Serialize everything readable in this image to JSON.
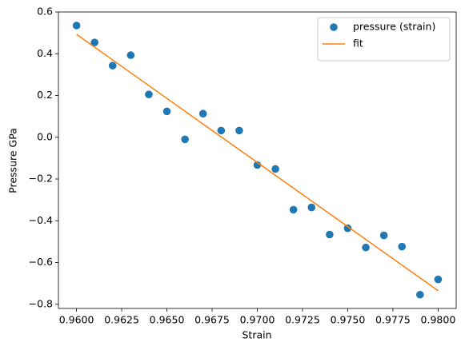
{
  "chart_data": {
    "type": "scatter",
    "xlabel": "Strain",
    "ylabel": "Pressure GPa",
    "x": [
      0.96,
      0.961,
      0.962,
      0.963,
      0.964,
      0.965,
      0.966,
      0.967,
      0.968,
      0.969,
      0.97,
      0.971,
      0.972,
      0.973,
      0.974,
      0.975,
      0.976,
      0.977,
      0.978,
      0.979,
      0.98
    ],
    "series": [
      {
        "name": "pressure (strain)",
        "type": "scatter",
        "color": "#1f77b4",
        "values": [
          0.535,
          0.454,
          0.343,
          0.393,
          0.205,
          0.124,
          -0.01,
          0.113,
          0.032,
          0.032,
          -0.133,
          -0.152,
          -0.347,
          -0.336,
          -0.466,
          -0.436,
          -0.528,
          -0.47,
          -0.524,
          -0.754,
          -0.681
        ]
      },
      {
        "name": "fit",
        "type": "line",
        "color": "#ff7f0e",
        "x": [
          0.96,
          0.98
        ],
        "values": [
          0.493,
          -0.735
        ]
      }
    ],
    "xlim": [
      0.959,
      0.981
    ],
    "ylim": [
      -0.82,
      0.6
    ],
    "xticks": [
      {
        "value": 0.96,
        "label": "0.9600"
      },
      {
        "value": 0.9625,
        "label": "0.9625"
      },
      {
        "value": 0.965,
        "label": "0.9650"
      },
      {
        "value": 0.9675,
        "label": "0.9675"
      },
      {
        "value": 0.97,
        "label": "0.9700"
      },
      {
        "value": 0.9725,
        "label": "0.9725"
      },
      {
        "value": 0.975,
        "label": "0.9750"
      },
      {
        "value": 0.9775,
        "label": "0.9775"
      },
      {
        "value": 0.98,
        "label": "0.9800"
      }
    ],
    "yticks": [
      0.6,
      0.4,
      0.2,
      {
        "value": 0,
        "label": "0.0"
      },
      {
        "value": -0.2,
        "label": "−0.2"
      },
      {
        "value": -0.4,
        "label": "−0.4"
      },
      {
        "value": -0.6,
        "label": "−0.6"
      },
      {
        "value": -0.8,
        "label": "−0.8"
      }
    ],
    "legend": "upper right"
  }
}
